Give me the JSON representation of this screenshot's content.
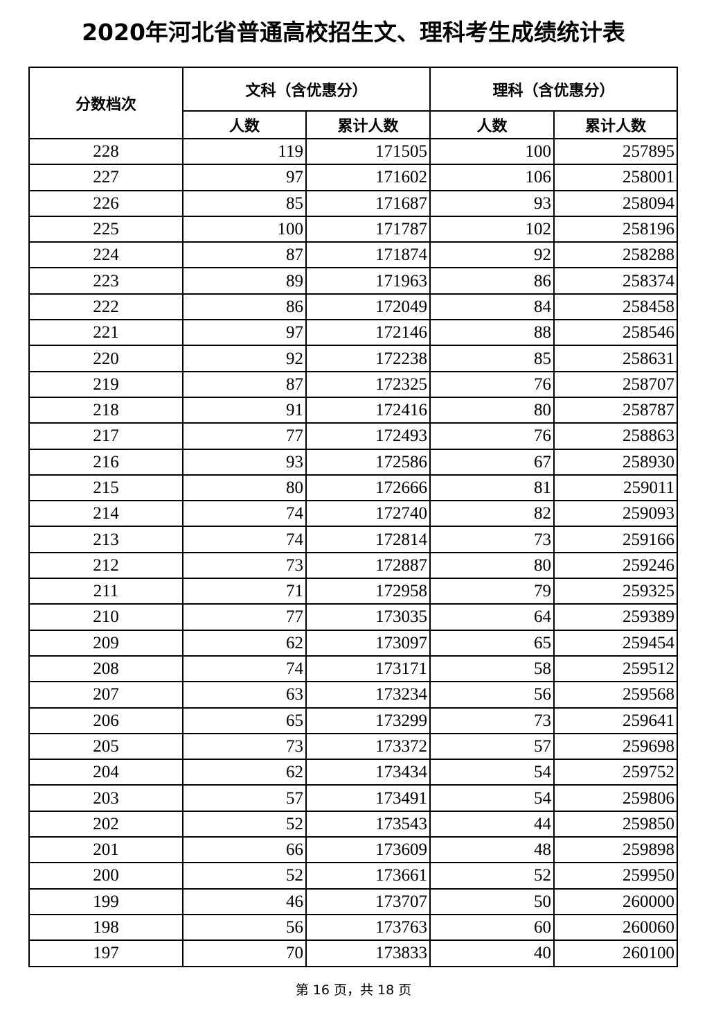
{
  "title": "2020年河北省普通高校招生文、理科考生成绩统计表",
  "headers": {
    "score": "分数档次",
    "arts": "文科（含优惠分）",
    "science": "理科（含优惠分）",
    "count": "人数",
    "cumulative": "累计人数"
  },
  "rows": [
    [
      228,
      119,
      171505,
      100,
      257895
    ],
    [
      227,
      97,
      171602,
      106,
      258001
    ],
    [
      226,
      85,
      171687,
      93,
      258094
    ],
    [
      225,
      100,
      171787,
      102,
      258196
    ],
    [
      224,
      87,
      171874,
      92,
      258288
    ],
    [
      223,
      89,
      171963,
      86,
      258374
    ],
    [
      222,
      86,
      172049,
      84,
      258458
    ],
    [
      221,
      97,
      172146,
      88,
      258546
    ],
    [
      220,
      92,
      172238,
      85,
      258631
    ],
    [
      219,
      87,
      172325,
      76,
      258707
    ],
    [
      218,
      91,
      172416,
      80,
      258787
    ],
    [
      217,
      77,
      172493,
      76,
      258863
    ],
    [
      216,
      93,
      172586,
      67,
      258930
    ],
    [
      215,
      80,
      172666,
      81,
      259011
    ],
    [
      214,
      74,
      172740,
      82,
      259093
    ],
    [
      213,
      74,
      172814,
      73,
      259166
    ],
    [
      212,
      73,
      172887,
      80,
      259246
    ],
    [
      211,
      71,
      172958,
      79,
      259325
    ],
    [
      210,
      77,
      173035,
      64,
      259389
    ],
    [
      209,
      62,
      173097,
      65,
      259454
    ],
    [
      208,
      74,
      173171,
      58,
      259512
    ],
    [
      207,
      63,
      173234,
      56,
      259568
    ],
    [
      206,
      65,
      173299,
      73,
      259641
    ],
    [
      205,
      73,
      173372,
      57,
      259698
    ],
    [
      204,
      62,
      173434,
      54,
      259752
    ],
    [
      203,
      57,
      173491,
      54,
      259806
    ],
    [
      202,
      52,
      173543,
      44,
      259850
    ],
    [
      201,
      66,
      173609,
      48,
      259898
    ],
    [
      200,
      52,
      173661,
      52,
      259950
    ],
    [
      199,
      46,
      173707,
      50,
      260000
    ],
    [
      198,
      56,
      173763,
      60,
      260060
    ],
    [
      197,
      70,
      173833,
      40,
      260100
    ]
  ],
  "footer": "第 16 页，共 18 页"
}
